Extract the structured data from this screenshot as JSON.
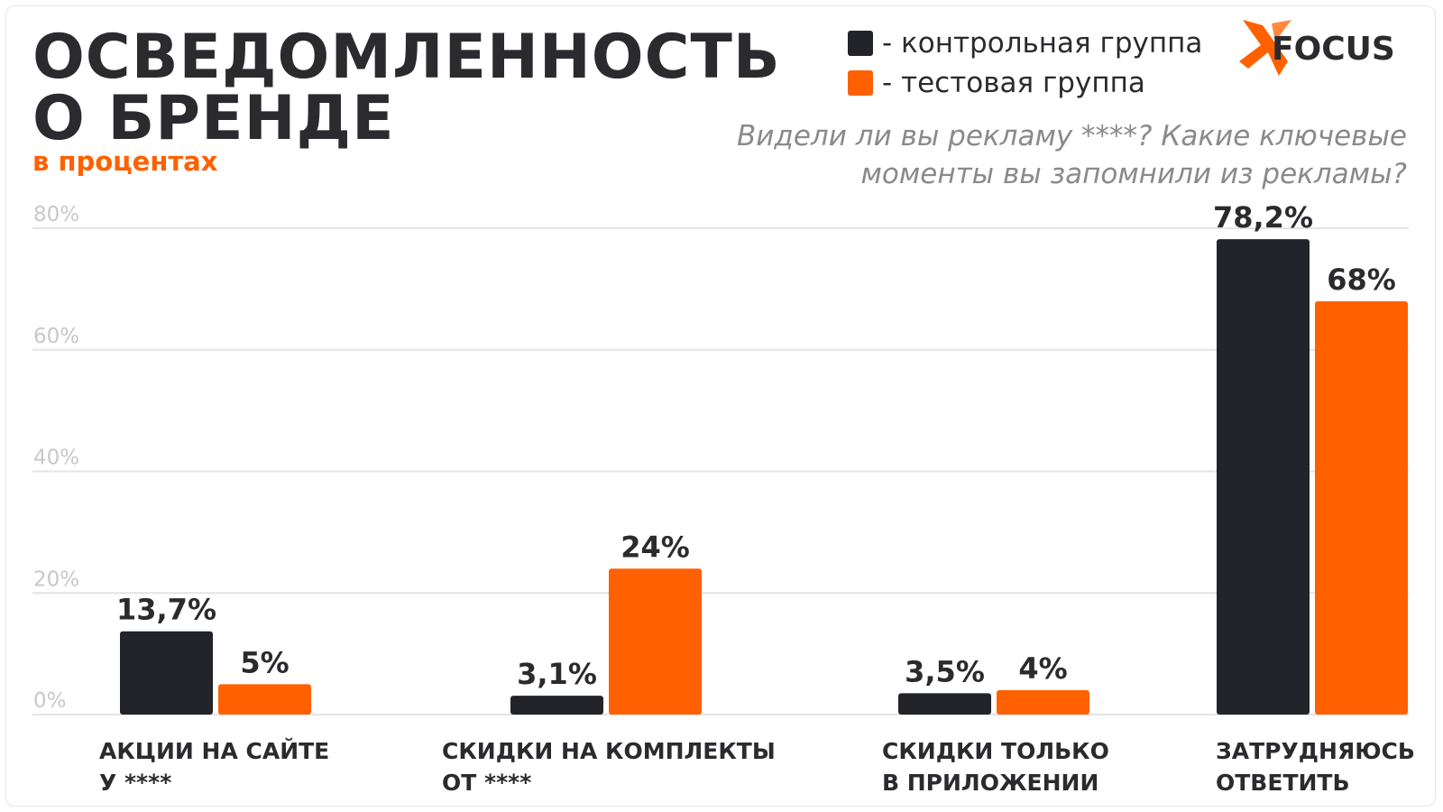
{
  "header": {
    "title_line1": "ОСВЕДОМЛЕННОСТЬ",
    "title_line2": "О БРЕНДЕ",
    "subtitle": "в процентах"
  },
  "legend": {
    "control": "- контрольная группа",
    "test": "- тестовая группа"
  },
  "logo": {
    "text": "FOCUS",
    "mark_color": "#ff6000"
  },
  "question": {
    "line1": "Видели ли вы рекламу ****? Какие ключевые",
    "line2": "моменты вы запомнили из рекламы?"
  },
  "colors": {
    "control": "#23232a",
    "test": "#ff6000",
    "grid": "#e4e4e4",
    "axis_text": "#c8c8c8"
  },
  "chart_data": {
    "type": "bar",
    "categories": [
      [
        "АКЦИИ НА САЙТЕ",
        "У ****"
      ],
      [
        "СКИДКИ НА КОМПЛЕКТЫ",
        "ОТ ****"
      ],
      [
        "СКИДКИ ТОЛЬКО",
        "В ПРИЛОЖЕНИИ"
      ],
      [
        "ЗАТРУДНЯЮСЬ",
        "ОТВЕТИТЬ"
      ]
    ],
    "series": [
      {
        "name": "- контрольная группа",
        "values": [
          13.7,
          3.1,
          3.5,
          78.2
        ],
        "labels": [
          "13,7%",
          "3,1%",
          "3,5%",
          "78,2%"
        ]
      },
      {
        "name": "- тестовая группа",
        "values": [
          5,
          24,
          4,
          68
        ],
        "labels": [
          "5%",
          "24%",
          "4%",
          "68%"
        ]
      }
    ],
    "yticks": [
      "0%",
      "20%",
      "40%",
      "60%",
      "80%"
    ],
    "ytick_values": [
      0,
      20,
      40,
      60,
      80
    ],
    "ylim": [
      0,
      80
    ],
    "grid": true,
    "legend_position": "top-right"
  }
}
